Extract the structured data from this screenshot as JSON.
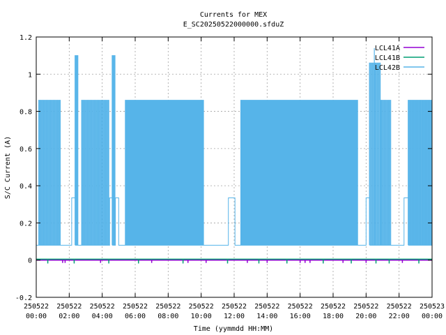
{
  "chart_data": {
    "type": "line",
    "title": "Currents for MEX",
    "subtitle": "E_SC20250522000000.sfduZ",
    "xlabel": "Time (yymmdd HH:MM)",
    "ylabel": "S/C Current (A)",
    "ylim": [
      -0.2,
      1.2
    ],
    "yticks": [
      "-0.2",
      "0",
      "0.2",
      "0.4",
      "0.6",
      "0.8",
      "1",
      "1.2"
    ],
    "xlim_hours": [
      0,
      24
    ],
    "xticks": [
      {
        "date": "250522",
        "time": "00:00"
      },
      {
        "date": "250522",
        "time": "02:00"
      },
      {
        "date": "250522",
        "time": "04:00"
      },
      {
        "date": "250522",
        "time": "06:00"
      },
      {
        "date": "250522",
        "time": "08:00"
      },
      {
        "date": "250522",
        "time": "10:00"
      },
      {
        "date": "250522",
        "time": "12:00"
      },
      {
        "date": "250522",
        "time": "14:00"
      },
      {
        "date": "250522",
        "time": "16:00"
      },
      {
        "date": "250522",
        "time": "18:00"
      },
      {
        "date": "250522",
        "time": "20:00"
      },
      {
        "date": "250522",
        "time": "22:00"
      },
      {
        "date": "250523",
        "time": "00:00"
      }
    ],
    "grid": true,
    "legend_position": "top-right",
    "series": [
      {
        "name": "LCL41A",
        "color": "#9400d3",
        "baseline": 0.0,
        "dips": [
          {
            "x": 1.6,
            "y": -0.015
          },
          {
            "x": 1.75,
            "y": -0.015
          },
          {
            "x": 3.9,
            "y": -0.015
          },
          {
            "x": 7.0,
            "y": -0.015
          },
          {
            "x": 9.2,
            "y": -0.015
          },
          {
            "x": 10.3,
            "y": -0.015
          },
          {
            "x": 12.8,
            "y": -0.015
          },
          {
            "x": 14.0,
            "y": -0.015
          },
          {
            "x": 16.0,
            "y": -0.015
          },
          {
            "x": 16.3,
            "y": -0.015
          },
          {
            "x": 16.6,
            "y": -0.015
          },
          {
            "x": 18.6,
            "y": -0.015
          },
          {
            "x": 20.0,
            "y": -0.015
          },
          {
            "x": 22.2,
            "y": -0.015
          }
        ]
      },
      {
        "name": "LCL41B",
        "color": "#009e73",
        "baseline": 0.005,
        "dips": [
          {
            "x": 0.7,
            "y": -0.018
          },
          {
            "x": 2.3,
            "y": -0.018
          },
          {
            "x": 4.4,
            "y": -0.018
          },
          {
            "x": 6.2,
            "y": -0.018
          },
          {
            "x": 8.9,
            "y": -0.018
          },
          {
            "x": 11.6,
            "y": -0.018
          },
          {
            "x": 13.5,
            "y": -0.018
          },
          {
            "x": 15.2,
            "y": -0.018
          },
          {
            "x": 17.4,
            "y": -0.018
          },
          {
            "x": 19.1,
            "y": -0.018
          },
          {
            "x": 20.6,
            "y": -0.018
          },
          {
            "x": 21.4,
            "y": -0.018
          },
          {
            "x": 23.2,
            "y": -0.018
          }
        ]
      },
      {
        "name": "LCL42B",
        "color": "#56b4e9",
        "low": 0.08,
        "high": 0.86,
        "segments": [
          {
            "x0": 0.0,
            "x1": 0.15,
            "mode": "flat",
            "y": 0.08
          },
          {
            "x0": 0.15,
            "x1": 1.5,
            "mode": "pulse",
            "y": 0.86,
            "period": 0.085
          },
          {
            "x0": 1.5,
            "x1": 2.15,
            "mode": "flat",
            "y": 0.08
          },
          {
            "x0": 2.15,
            "x1": 2.35,
            "mode": "flat",
            "y": 0.335
          },
          {
            "x0": 2.35,
            "x1": 2.55,
            "mode": "pulse",
            "y": 1.1,
            "period": 0.08
          },
          {
            "x0": 2.55,
            "x1": 2.75,
            "mode": "flat",
            "y": 0.08
          },
          {
            "x0": 2.75,
            "x1": 4.45,
            "mode": "pulse",
            "y": 0.86,
            "period": 0.085
          },
          {
            "x0": 4.45,
            "x1": 4.6,
            "mode": "flat",
            "y": 0.335
          },
          {
            "x0": 4.6,
            "x1": 4.8,
            "mode": "pulse",
            "y": 1.1,
            "period": 0.08
          },
          {
            "x0": 4.8,
            "x1": 5.0,
            "mode": "flat",
            "y": 0.335
          },
          {
            "x0": 5.0,
            "x1": 5.4,
            "mode": "flat",
            "y": 0.08
          },
          {
            "x0": 5.4,
            "x1": 10.15,
            "mode": "pulse",
            "y": 0.86,
            "period": 0.06
          },
          {
            "x0": 10.15,
            "x1": 11.65,
            "mode": "flat",
            "y": 0.08
          },
          {
            "x0": 11.65,
            "x1": 12.05,
            "mode": "flat",
            "y": 0.335
          },
          {
            "x0": 12.05,
            "x1": 12.4,
            "mode": "flat",
            "y": 0.08
          },
          {
            "x0": 12.4,
            "x1": 15.85,
            "mode": "pulse",
            "y": 0.86,
            "period": 0.065
          },
          {
            "x0": 15.85,
            "x1": 19.5,
            "mode": "pulse",
            "y": 0.86,
            "period": 0.055
          },
          {
            "x0": 19.5,
            "x1": 20.0,
            "mode": "flat",
            "y": 0.08
          },
          {
            "x0": 20.0,
            "x1": 20.2,
            "mode": "flat",
            "y": 0.335
          },
          {
            "x0": 20.2,
            "x1": 20.9,
            "mode": "pulse",
            "y": 1.06,
            "period": 0.09
          },
          {
            "x0": 20.9,
            "x1": 21.5,
            "mode": "pulse",
            "y": 0.86,
            "period": 0.085
          },
          {
            "x0": 21.5,
            "x1": 22.3,
            "mode": "flat",
            "y": 0.08
          },
          {
            "x0": 22.3,
            "x1": 22.55,
            "mode": "flat",
            "y": 0.335
          },
          {
            "x0": 22.55,
            "x1": 24.0,
            "mode": "pulse",
            "y": 0.86,
            "period": 0.08
          }
        ],
        "peaks": [
          {
            "x": 20.5,
            "y": 1.14
          }
        ]
      }
    ]
  }
}
